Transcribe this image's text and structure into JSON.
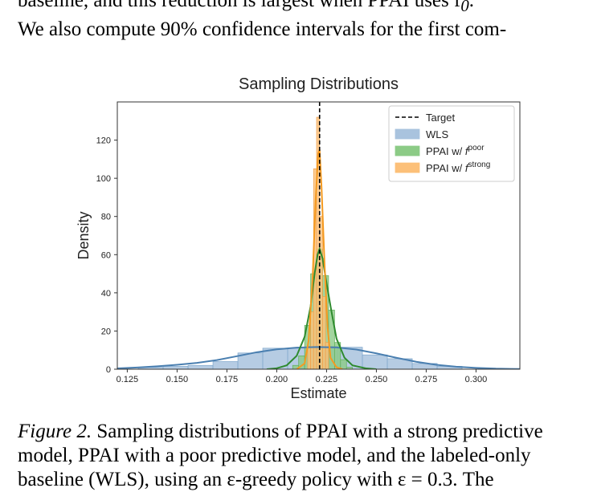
{
  "body_text": {
    "line1": "baseline, and this reduction is largest when PPAI uses f",
    "line1_sub": "0",
    "line1_end": ".",
    "line2": "We also compute 90% confidence intervals for the first com-"
  },
  "caption": {
    "label": "Figure 2.",
    "line1_rest": " Sampling distributions of PPAI with a strong predictive",
    "line2": "model, PPAI with a poor predictive model, and the labeled-only",
    "line3": "baseline (WLS), using an ε-greedy policy with ε = 0.3. The"
  },
  "chart_data": {
    "type": "bar",
    "title": "Sampling Distributions",
    "xlabel": "Estimate",
    "ylabel": "Density",
    "xlim": [
      0.12,
      0.322
    ],
    "ylim": [
      0,
      140
    ],
    "xticks": [
      "0.125",
      "0.150",
      "0.175",
      "0.200",
      "0.225",
      "0.250",
      "0.275",
      "0.300"
    ],
    "xtick_values": [
      0.125,
      0.15,
      0.175,
      0.2,
      0.225,
      0.25,
      0.275,
      0.3
    ],
    "yticks": [
      "0",
      "20",
      "40",
      "60",
      "80",
      "100",
      "120"
    ],
    "ytick_values": [
      0,
      20,
      40,
      60,
      80,
      100,
      120
    ],
    "target": 0.2215,
    "legend_position": "top-right",
    "legend": [
      {
        "label": "Target",
        "kind": "dashed",
        "color": "#000000"
      },
      {
        "label": "WLS",
        "kind": "patch",
        "color": "#a9c3de"
      },
      {
        "label": "PPAI w/ f",
        "sup": "poor",
        "kind": "patch",
        "color": "#8ccb86"
      },
      {
        "label": "PPAI w/ f",
        "sup": "strong",
        "kind": "patch",
        "color": "#fcc079"
      }
    ],
    "series": [
      {
        "name": "WLS",
        "color": "#a9c3de",
        "edge": "#7fa7cc",
        "line_color": "#4a7fb0",
        "bins": [
          [
            0.1305,
            0.143,
            1
          ],
          [
            0.143,
            0.1555,
            1.5
          ],
          [
            0.1555,
            0.168,
            2
          ],
          [
            0.168,
            0.1805,
            4
          ],
          [
            0.1805,
            0.193,
            8.5
          ],
          [
            0.193,
            0.2055,
            11
          ],
          [
            0.2055,
            0.218,
            11
          ],
          [
            0.218,
            0.2305,
            12
          ],
          [
            0.2305,
            0.243,
            11.5
          ],
          [
            0.243,
            0.2555,
            7.5
          ],
          [
            0.2555,
            0.268,
            5.5
          ],
          [
            0.268,
            0.2805,
            3
          ],
          [
            0.2805,
            0.293,
            1.5
          ]
        ],
        "curve": [
          [
            0.12,
            0.4
          ],
          [
            0.13,
            0.9
          ],
          [
            0.14,
            1.5
          ],
          [
            0.15,
            2.3
          ],
          [
            0.16,
            3.3
          ],
          [
            0.17,
            4.8
          ],
          [
            0.18,
            6.8
          ],
          [
            0.19,
            8.9
          ],
          [
            0.2,
            10.4
          ],
          [
            0.21,
            11.3
          ],
          [
            0.22,
            11.6
          ],
          [
            0.23,
            11.4
          ],
          [
            0.24,
            10.3
          ],
          [
            0.25,
            8.3
          ],
          [
            0.26,
            6
          ],
          [
            0.27,
            3.9
          ],
          [
            0.28,
            2.3
          ],
          [
            0.29,
            1.3
          ],
          [
            0.3,
            0.7
          ],
          [
            0.31,
            0.3
          ],
          [
            0.322,
            0.1
          ]
        ]
      },
      {
        "name": "PPAI w/ f poor",
        "color": "#8ccb86",
        "edge": "#5fae5a",
        "line_color": "#2e8b2e",
        "bins": [
          [
            0.208,
            0.211,
            2
          ],
          [
            0.211,
            0.214,
            7
          ],
          [
            0.214,
            0.217,
            23
          ],
          [
            0.217,
            0.22,
            50
          ],
          [
            0.22,
            0.223,
            63
          ],
          [
            0.223,
            0.226,
            49
          ],
          [
            0.226,
            0.229,
            31
          ],
          [
            0.229,
            0.232,
            14
          ],
          [
            0.232,
            0.235,
            5
          ],
          [
            0.235,
            0.238,
            1
          ]
        ],
        "curve": [
          [
            0.195,
            0
          ],
          [
            0.2,
            0.5
          ],
          [
            0.205,
            2
          ],
          [
            0.21,
            7
          ],
          [
            0.214,
            17
          ],
          [
            0.217,
            33
          ],
          [
            0.219,
            50
          ],
          [
            0.2205,
            60
          ],
          [
            0.2215,
            63
          ],
          [
            0.223,
            58
          ],
          [
            0.225,
            45
          ],
          [
            0.2275,
            30
          ],
          [
            0.23,
            16
          ],
          [
            0.234,
            6
          ],
          [
            0.238,
            2
          ],
          [
            0.245,
            0.4
          ],
          [
            0.25,
            0
          ]
        ]
      },
      {
        "name": "PPAI w/ f strong",
        "color": "#fcc079",
        "edge": "#f0a04a",
        "line_color": "#f59a20",
        "bins": [
          [
            0.2155,
            0.217,
            12
          ],
          [
            0.217,
            0.2185,
            30
          ],
          [
            0.2185,
            0.22,
            105
          ],
          [
            0.22,
            0.2215,
            132
          ],
          [
            0.2215,
            0.223,
            80
          ],
          [
            0.223,
            0.2245,
            38
          ],
          [
            0.2245,
            0.226,
            14
          ]
        ],
        "curve": [
          [
            0.21,
            0
          ],
          [
            0.214,
            3
          ],
          [
            0.216,
            15
          ],
          [
            0.218,
            48
          ],
          [
            0.2195,
            88
          ],
          [
            0.2208,
            113
          ],
          [
            0.2215,
            115
          ],
          [
            0.2225,
            95
          ],
          [
            0.224,
            55
          ],
          [
            0.2255,
            22
          ],
          [
            0.227,
            6
          ],
          [
            0.23,
            1
          ],
          [
            0.233,
            0
          ]
        ]
      }
    ]
  }
}
